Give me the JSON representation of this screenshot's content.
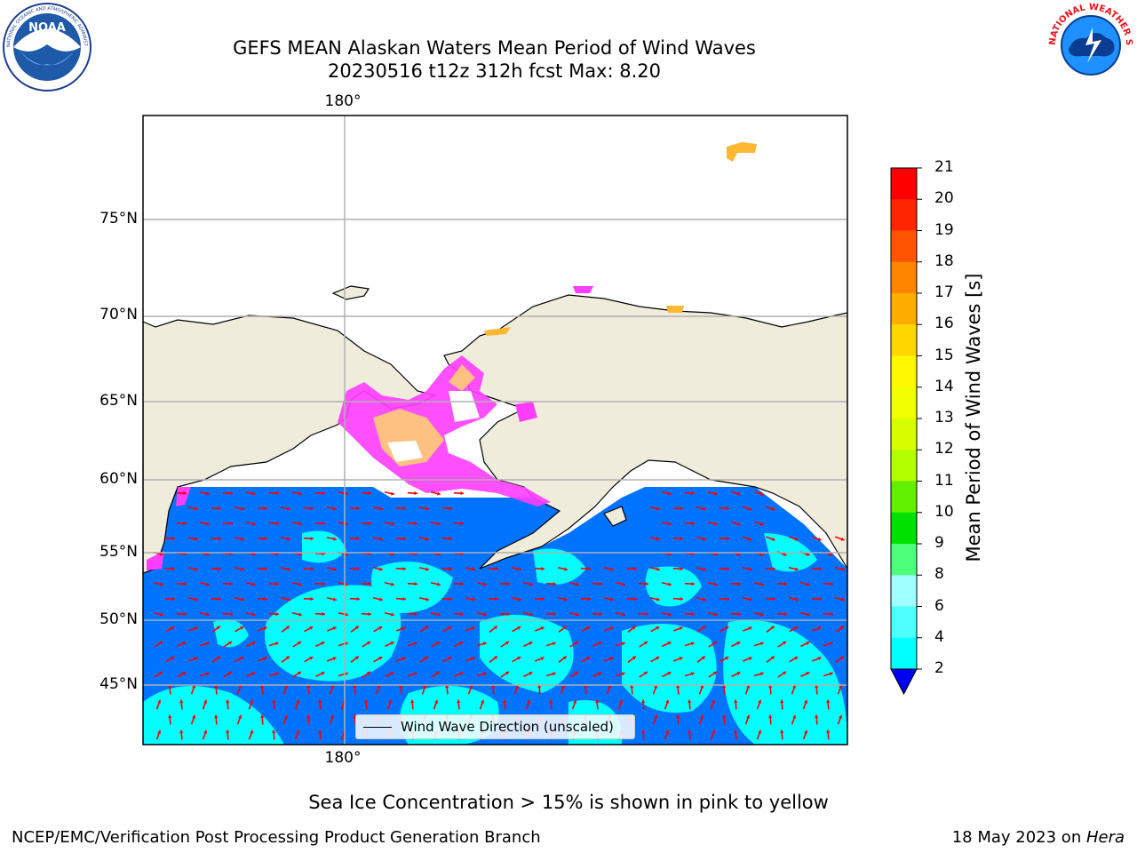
{
  "title": {
    "line1": "GEFS MEAN Alaskan Waters Mean Period of Wind Waves",
    "line2": "20230516 t12z 312h fcst   Max: 8.20"
  },
  "logos": {
    "noaa": {
      "icon": "noaa-logo",
      "text": "NOAA",
      "ring_text": "NATIONAL OCEANIC AND ATMOSPHERIC ADMINISTRATION · U.S. DEPARTMENT OF COMMERCE"
    },
    "nws": {
      "icon": "nws-logo",
      "ring_text": "NATIONAL WEATHER SERVICE"
    }
  },
  "map": {
    "lat_labels": [
      "75°N",
      "70°N",
      "65°N",
      "60°N",
      "55°N",
      "50°N",
      "45°N"
    ],
    "lon_label_top": "180°",
    "lon_label_bottom": "180°",
    "grid": true,
    "legend_text": "Wind Wave Direction (unscaled)",
    "colors": {
      "land": "#efecdc",
      "ocean_2_4": "#0073ff",
      "ocean_4_6": "#00ffff",
      "arrows": "#ff0000",
      "ice_pink": "#ff3dff",
      "ice_yellow": "#ffd56b"
    }
  },
  "colorbar": {
    "label": "Mean Period of Wind Waves [s]",
    "ticks": [
      "21",
      "20",
      "19",
      "18",
      "17",
      "16",
      "15",
      "14",
      "13",
      "12",
      "11",
      "10",
      "9",
      "8",
      "6",
      "4",
      "2"
    ],
    "colors": [
      "#ff0000",
      "#ff2600",
      "#ff5500",
      "#ff8400",
      "#ffad00",
      "#ffd700",
      "#fff700",
      "#f0ff00",
      "#d7ff00",
      "#b2ff00",
      "#60f000",
      "#00e100",
      "#4dff7b",
      "#a0ffff",
      "#4dffff",
      "#00ffff",
      "#0073ff"
    ],
    "under_color": "#0000f5"
  },
  "footnote": "Sea Ice Concentration > 15% is shown in pink to yellow",
  "credits": {
    "left": "NCEP/EMC/Verification Post Processing Product Generation Branch",
    "right_date": "18 May 2023 on ",
    "right_host": "Hera"
  }
}
